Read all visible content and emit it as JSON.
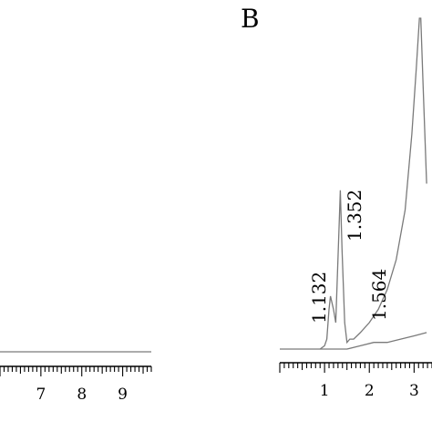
{
  "chart_data": [
    {
      "type": "line",
      "panel": "A",
      "x_ticks": [
        7,
        8,
        9
      ],
      "xlim": [
        6.0,
        9.7
      ],
      "series": [
        {
          "x": [
            6.0,
            9.7
          ],
          "y": [
            0.0,
            0.0
          ]
        }
      ]
    },
    {
      "type": "line",
      "panel": "B",
      "panel_label": "B",
      "x_ticks": [
        1,
        2,
        3
      ],
      "xlim": [
        0.0,
        3.4
      ],
      "peak_labels": [
        "1.132",
        "1.352",
        "1.564"
      ],
      "series": [
        {
          "x": [
            0.0,
            0.9,
            1.0,
            1.05,
            1.1,
            1.132,
            1.2,
            1.25,
            1.32,
            1.352,
            1.39,
            1.45,
            1.5,
            1.564,
            1.65,
            1.8,
            2.0,
            2.2,
            2.4,
            2.6,
            2.8,
            2.95,
            3.05,
            3.12,
            3.15,
            3.2,
            3.28
          ],
          "y": [
            0.0,
            0.0,
            0.01,
            0.03,
            0.12,
            0.16,
            0.12,
            0.08,
            0.35,
            0.48,
            0.3,
            0.08,
            0.02,
            0.03,
            0.03,
            0.05,
            0.08,
            0.12,
            0.18,
            0.27,
            0.42,
            0.65,
            0.85,
            1.0,
            1.0,
            0.8,
            0.5
          ]
        },
        {
          "x": [
            0.9,
            1.3,
            1.5,
            1.8,
            2.1,
            2.4,
            2.7,
            3.0,
            3.28
          ],
          "y": [
            0.0,
            0.0,
            0.0,
            0.01,
            0.02,
            0.02,
            0.03,
            0.04,
            0.05
          ]
        }
      ]
    }
  ]
}
